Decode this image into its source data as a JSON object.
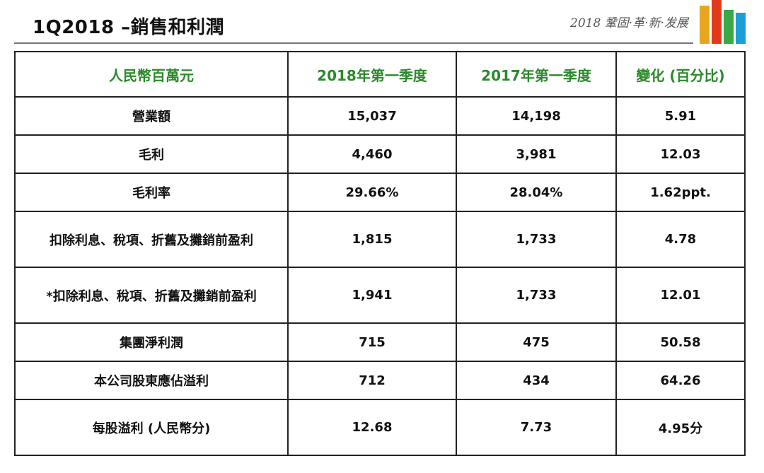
{
  "slide": {
    "title": "1Q2018 –銷售和利潤",
    "tagline": "2018 鞏固·革·新·发展",
    "brand_bar_colors": [
      "#e8a61e",
      "#e23b1c",
      "#3aa845",
      "#1b9fd6"
    ]
  },
  "table": {
    "headers": [
      "人民幣百萬元",
      "2018年第一季度",
      "2017年第一季度",
      "變化 (百分比)"
    ],
    "header_color": "#2a8a2a",
    "rows": [
      {
        "label": "營業額",
        "q1_2018": "15,037",
        "q1_2017": "14,198",
        "change": "5.91"
      },
      {
        "label": "毛利",
        "q1_2018": "4,460",
        "q1_2017": "3,981",
        "change": "12.03"
      },
      {
        "label": "毛利率",
        "q1_2018": "29.66%",
        "q1_2017": "28.04%",
        "change": "1.62ppt."
      },
      {
        "label": "扣除利息、稅項、折舊及攤銷前盈利",
        "q1_2018": "1,815",
        "q1_2017": "1,733",
        "change": "4.78"
      },
      {
        "label": "*扣除利息、稅項、折舊及攤銷前盈利",
        "q1_2018": "1,941",
        "q1_2017": "1,733",
        "change": "12.01"
      },
      {
        "label": "集團淨利潤",
        "q1_2018": "715",
        "q1_2017": "475",
        "change": "50.58"
      },
      {
        "label": "本公司股東應佔溢利",
        "q1_2018": "712",
        "q1_2017": "434",
        "change": "64.26"
      },
      {
        "label": "每股溢利 (人民幣分)",
        "q1_2018": "12.68",
        "q1_2017": "7.73",
        "change": "4.95分"
      }
    ]
  }
}
